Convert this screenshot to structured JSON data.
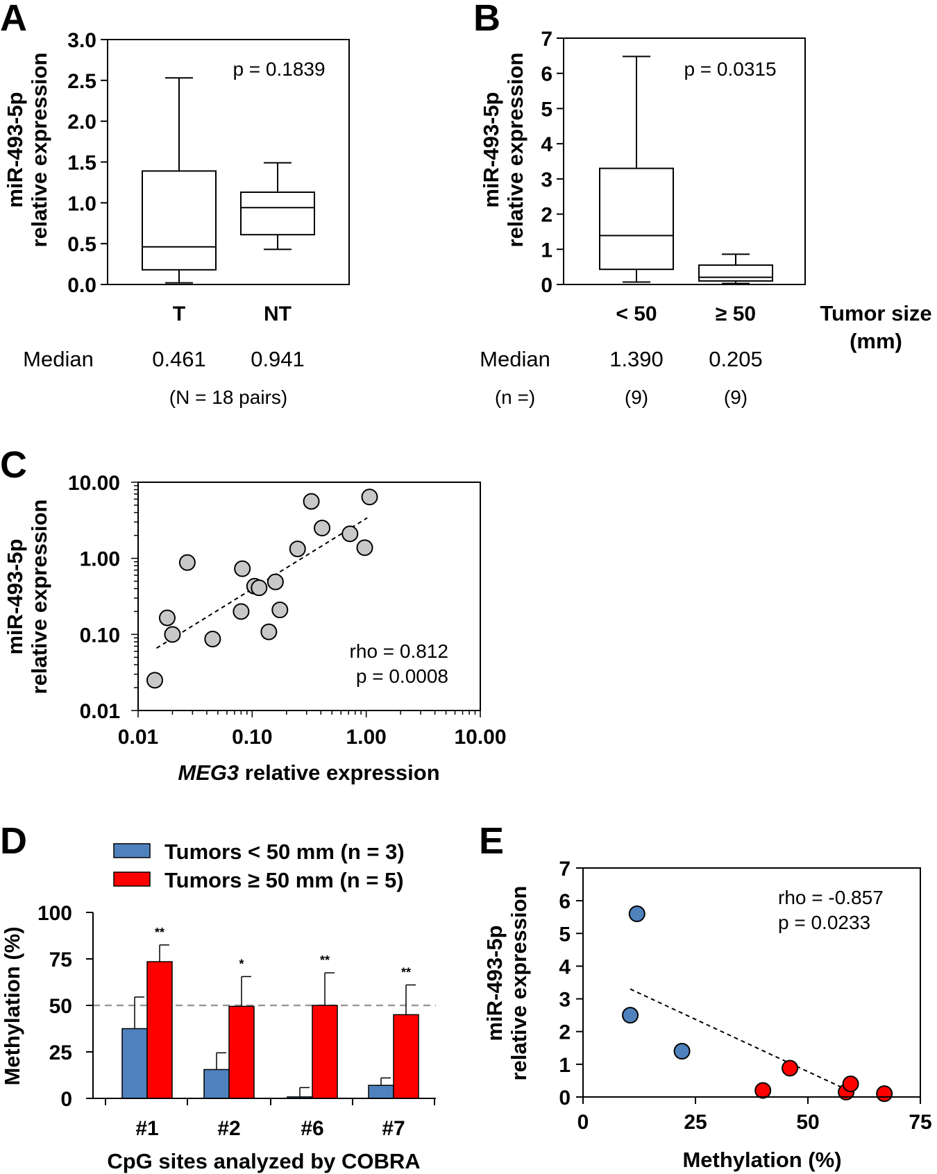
{
  "panel_letters": [
    "A",
    "B",
    "C",
    "D",
    "E"
  ],
  "chart_data": [
    {
      "panel": "A",
      "type": "box",
      "ylabel_lines": [
        "miR-493-5p",
        "relative expression"
      ],
      "ylim": [
        0,
        3.0
      ],
      "yticks": [
        "0.0",
        "0.5",
        "1.0",
        "1.5",
        "2.0",
        "2.5",
        "3.0"
      ],
      "annotation": "p = 0.1839",
      "categories": [
        "T",
        "NT"
      ],
      "boxes": [
        {
          "min": 0.02,
          "q1": 0.18,
          "median": 0.461,
          "q3": 1.39,
          "max": 2.53
        },
        {
          "min": 0.43,
          "q1": 0.61,
          "median": 0.941,
          "q3": 1.13,
          "max": 1.49
        }
      ],
      "median_label": "Median",
      "median_values": [
        "0.461",
        "0.941"
      ],
      "note": "(N = 18 pairs)"
    },
    {
      "panel": "B",
      "type": "box",
      "ylabel_lines": [
        "miR-493-5p",
        "relative expression"
      ],
      "ylim": [
        0,
        7
      ],
      "yticks": [
        "0",
        "1",
        "2",
        "3",
        "4",
        "5",
        "6",
        "7"
      ],
      "annotation": "p = 0.0315",
      "categories": [
        "< 50",
        "≥ 50"
      ],
      "xgroup_label_lines": [
        "Tumor size",
        "(mm)"
      ],
      "boxes": [
        {
          "min": 0.07,
          "q1": 0.43,
          "median": 1.39,
          "q3": 3.3,
          "max": 6.48
        },
        {
          "min": 0.03,
          "q1": 0.1,
          "median": 0.205,
          "q3": 0.55,
          "max": 0.86
        }
      ],
      "median_label": "Median",
      "median_values": [
        "1.390",
        "0.205"
      ],
      "n_label": "(n =)",
      "n_values": [
        "(9)",
        "(9)"
      ]
    },
    {
      "panel": "C",
      "type": "scatter",
      "xscale": "log",
      "yscale": "log",
      "xlim": [
        0.01,
        10
      ],
      "ylim": [
        0.01,
        10
      ],
      "xticks": [
        "0.01",
        "0.10",
        "1.00",
        "10.00"
      ],
      "yticks": [
        "0.01",
        "0.10",
        "1.00",
        "10.00"
      ],
      "xlabel_italic": "MEG3",
      "xlabel_rest": " relative expression",
      "ylabel_lines": [
        "miR-493-5p",
        "relative expression"
      ],
      "annotation_lines": [
        "rho = 0.812",
        "p = 0.0008"
      ],
      "points": [
        {
          "x": 0.014,
          "y": 0.025
        },
        {
          "x": 0.018,
          "y": 0.165
        },
        {
          "x": 0.02,
          "y": 0.1
        },
        {
          "x": 0.027,
          "y": 0.88
        },
        {
          "x": 0.045,
          "y": 0.087
        },
        {
          "x": 0.08,
          "y": 0.2
        },
        {
          "x": 0.082,
          "y": 0.73
        },
        {
          "x": 0.105,
          "y": 0.43
        },
        {
          "x": 0.115,
          "y": 0.41
        },
        {
          "x": 0.14,
          "y": 0.108
        },
        {
          "x": 0.16,
          "y": 0.49
        },
        {
          "x": 0.175,
          "y": 0.21
        },
        {
          "x": 0.25,
          "y": 1.33
        },
        {
          "x": 0.33,
          "y": 5.6
        },
        {
          "x": 0.41,
          "y": 2.5
        },
        {
          "x": 0.72,
          "y": 2.1
        },
        {
          "x": 0.97,
          "y": 1.38
        },
        {
          "x": 1.07,
          "y": 6.4
        }
      ],
      "trendline": [
        {
          "x": 0.0145,
          "y": 0.066
        },
        {
          "x": 1.02,
          "y": 3.4
        }
      ],
      "point_color": "#c8c8c8"
    },
    {
      "panel": "D",
      "type": "bar",
      "ylabel": "Methylation (%)",
      "xlabel": "CpG sites analyzed by COBRA",
      "ylim": [
        0,
        100
      ],
      "yticks": [
        "0",
        "25",
        "50",
        "75",
        "100"
      ],
      "reference_line": 50,
      "categories": [
        "#1",
        "#2",
        "#6",
        "#7"
      ],
      "series": [
        {
          "name": "Tumors < 50 mm (n = 3)",
          "color": "#4f81bd",
          "values": [
            37.5,
            15.5,
            0.8,
            7
          ],
          "errors": [
            17,
            9,
            5,
            4
          ]
        },
        {
          "name": "Tumors ≥ 50 mm (n = 5)",
          "color": "#ff0000",
          "values": [
            73.5,
            49.5,
            50,
            45
          ],
          "errors": [
            9,
            16,
            17.5,
            16
          ]
        }
      ],
      "significance": [
        "**",
        "*",
        "**",
        "**"
      ]
    },
    {
      "panel": "E",
      "type": "scatter",
      "xlabel": "Methylation (%)",
      "ylabel_lines": [
        "miR-493-5p",
        "relative expression"
      ],
      "xlim": [
        0,
        75
      ],
      "ylim": [
        0,
        7
      ],
      "xticks": [
        "0",
        "25",
        "50",
        "75"
      ],
      "yticks": [
        "0",
        "1",
        "2",
        "3",
        "4",
        "5",
        "6",
        "7"
      ],
      "annotation_lines": [
        "rho = -0.857",
        "p = 0.0233"
      ],
      "series": [
        {
          "name": "Tumors < 50 mm",
          "color": "#4f81bd",
          "points": [
            {
              "x": 12,
              "y": 5.6
            },
            {
              "x": 10.5,
              "y": 2.5
            },
            {
              "x": 22,
              "y": 1.4
            }
          ]
        },
        {
          "name": "Tumors ≥ 50 mm",
          "color": "#ff0000",
          "points": [
            {
              "x": 40,
              "y": 0.2
            },
            {
              "x": 46,
              "y": 0.88
            },
            {
              "x": 58.5,
              "y": 0.15
            },
            {
              "x": 59.5,
              "y": 0.4
            },
            {
              "x": 67,
              "y": 0.1
            }
          ]
        }
      ],
      "trendline": [
        {
          "x": 10.5,
          "y": 3.3
        },
        {
          "x": 59,
          "y": 0.2
        }
      ]
    }
  ]
}
